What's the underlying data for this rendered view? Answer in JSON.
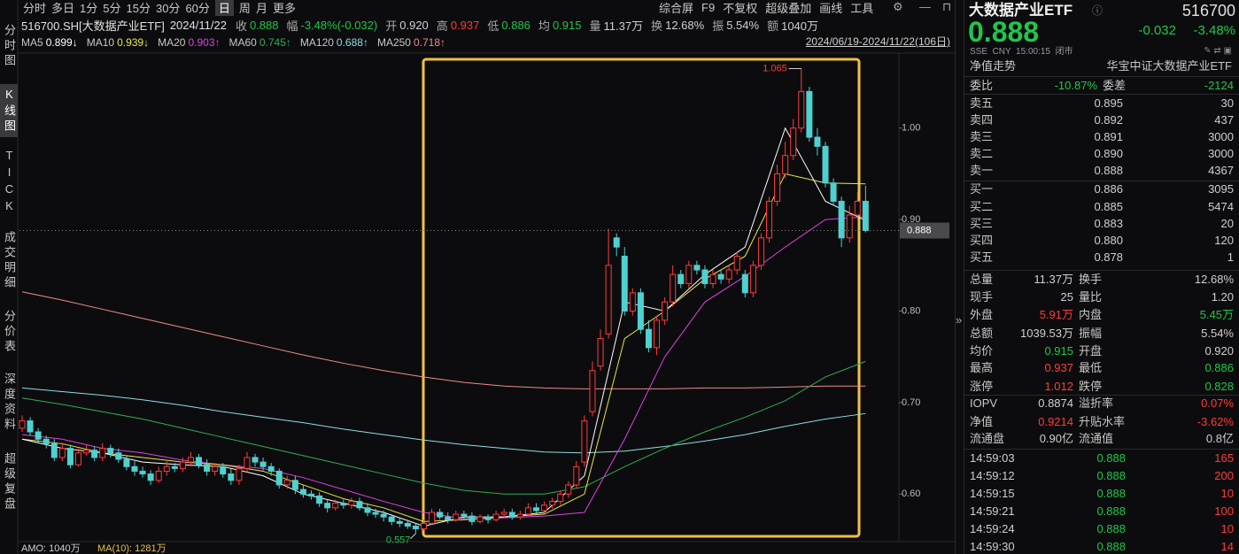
{
  "toolbar": {
    "periods": [
      "分时",
      "多日",
      "1分",
      "5分",
      "15分",
      "30分",
      "60分",
      "日",
      "周",
      "月",
      "更多"
    ],
    "selected": 7,
    "tools": [
      "综合屏",
      "F9",
      "不复权",
      "超级叠加",
      "画线",
      "工具"
    ]
  },
  "sidebar": [
    "分时图",
    "K线图",
    "TICK",
    "成交明细",
    "分价表",
    "深度资料",
    "超级复盘"
  ],
  "sidebar_selected": 1,
  "quote": {
    "symbol": "516700.SH[大数据产业ETF]",
    "date": "2024/11/22",
    "items": [
      {
        "label": "收",
        "value": "0.888",
        "color": "#20c64a"
      },
      {
        "label": "幅",
        "value": "-3.48%(-0.032)",
        "color": "#20c64a"
      },
      {
        "label": "开",
        "value": "0.920",
        "color": "#d0d0d0"
      },
      {
        "label": "高",
        "value": "0.937",
        "color": "#ff3b3b"
      },
      {
        "label": "低",
        "value": "0.886",
        "color": "#20c64a"
      },
      {
        "label": "均",
        "value": "0.915",
        "color": "#20c64a"
      },
      {
        "label": "量",
        "value": "11.37万",
        "color": "#d0d0d0"
      },
      {
        "label": "换",
        "value": "12.68%",
        "color": "#d0d0d0"
      },
      {
        "label": "振",
        "value": "5.54%",
        "color": "#d0d0d0"
      },
      {
        "label": "额",
        "value": "1040万",
        "color": "#d0d0d0"
      }
    ]
  },
  "ma_legend": [
    {
      "name": "MA5",
      "value": "0.899↓",
      "color": "#ffffff"
    },
    {
      "name": "MA10",
      "value": "0.939↓",
      "color": "#e8e84a"
    },
    {
      "name": "MA20",
      "value": "0.903↑",
      "color": "#e040e0"
    },
    {
      "name": "MA60",
      "value": "0.745↑",
      "color": "#2fae4f"
    },
    {
      "name": "MA120",
      "value": "0.688↑",
      "color": "#8fdde6"
    },
    {
      "name": "MA250",
      "value": "0.718↑",
      "color": "#f08a8a"
    }
  ],
  "range": "2024/06/19-2024/11/22(106日)",
  "chart": {
    "type": "candlestick",
    "open": [
      0.672,
      0.68,
      0.668,
      0.66,
      0.655,
      0.64,
      0.65,
      0.632,
      0.645,
      0.648,
      0.64,
      0.65,
      0.645,
      0.638,
      0.63,
      0.625,
      0.622,
      0.615,
      0.625,
      0.63,
      0.628,
      0.635,
      0.64,
      0.632,
      0.625,
      0.63,
      0.622,
      0.615,
      0.628,
      0.64,
      0.635,
      0.63,
      0.625,
      0.61,
      0.615,
      0.605,
      0.6,
      0.598,
      0.59,
      0.585,
      0.59,
      0.588,
      0.592,
      0.585,
      0.58,
      0.578,
      0.575,
      0.57,
      0.568,
      0.565,
      0.562,
      0.568,
      0.58,
      0.575,
      0.572,
      0.578,
      0.576,
      0.57,
      0.575,
      0.572,
      0.578,
      0.58,
      0.575,
      0.578,
      0.585,
      0.582,
      0.588,
      0.592,
      0.6,
      0.61,
      0.635,
      0.69,
      0.74,
      0.775,
      0.88,
      0.86,
      0.8,
      0.82,
      0.78,
      0.76,
      0.79,
      0.81,
      0.84,
      0.83,
      0.85,
      0.845,
      0.83,
      0.84,
      0.835,
      0.845,
      0.84,
      0.82,
      0.85,
      0.88,
      0.92,
      0.95,
      0.97,
      1.0,
      1.04,
      0.99,
      0.98,
      0.94,
      0.92,
      0.88,
      0.905,
      0.92
    ],
    "high": [
      0.686,
      0.684,
      0.672,
      0.664,
      0.66,
      0.656,
      0.654,
      0.65,
      0.654,
      0.652,
      0.656,
      0.654,
      0.65,
      0.642,
      0.636,
      0.63,
      0.626,
      0.63,
      0.636,
      0.634,
      0.64,
      0.646,
      0.644,
      0.638,
      0.634,
      0.634,
      0.628,
      0.632,
      0.646,
      0.644,
      0.64,
      0.634,
      0.628,
      0.62,
      0.62,
      0.61,
      0.604,
      0.602,
      0.594,
      0.594,
      0.594,
      0.596,
      0.596,
      0.59,
      0.584,
      0.582,
      0.578,
      0.574,
      0.572,
      0.568,
      0.572,
      0.584,
      0.584,
      0.58,
      0.582,
      0.582,
      0.58,
      0.578,
      0.578,
      0.582,
      0.584,
      0.584,
      0.582,
      0.59,
      0.59,
      0.592,
      0.596,
      0.604,
      0.614,
      0.636,
      0.686,
      0.745,
      0.78,
      0.89,
      0.885,
      0.87,
      0.825,
      0.825,
      0.79,
      0.795,
      0.815,
      0.85,
      0.845,
      0.855,
      0.855,
      0.85,
      0.845,
      0.845,
      0.85,
      0.865,
      0.845,
      0.855,
      0.885,
      0.925,
      0.96,
      0.985,
      1.01,
      1.065,
      1.045,
      1.0,
      0.985,
      0.945,
      0.925,
      0.915,
      0.93,
      0.937
    ],
    "low": [
      0.668,
      0.664,
      0.656,
      0.65,
      0.636,
      0.636,
      0.628,
      0.63,
      0.642,
      0.636,
      0.636,
      0.64,
      0.634,
      0.626,
      0.62,
      0.618,
      0.61,
      0.612,
      0.62,
      0.624,
      0.624,
      0.63,
      0.628,
      0.62,
      0.62,
      0.618,
      0.61,
      0.61,
      0.624,
      0.63,
      0.626,
      0.62,
      0.606,
      0.606,
      0.6,
      0.596,
      0.594,
      0.586,
      0.58,
      0.582,
      0.584,
      0.584,
      0.582,
      0.576,
      0.574,
      0.57,
      0.566,
      0.564,
      0.562,
      0.557,
      0.56,
      0.566,
      0.572,
      0.568,
      0.57,
      0.572,
      0.566,
      0.568,
      0.568,
      0.57,
      0.574,
      0.572,
      0.572,
      0.576,
      0.578,
      0.58,
      0.584,
      0.588,
      0.596,
      0.606,
      0.63,
      0.685,
      0.735,
      0.77,
      0.86,
      0.795,
      0.795,
      0.775,
      0.755,
      0.752,
      0.785,
      0.805,
      0.825,
      0.825,
      0.84,
      0.825,
      0.825,
      0.83,
      0.83,
      0.84,
      0.815,
      0.815,
      0.845,
      0.875,
      0.915,
      0.945,
      0.965,
      0.995,
      0.985,
      0.97,
      0.935,
      0.915,
      0.87,
      0.875,
      0.9,
      0.886
    ],
    "close": [
      0.68,
      0.668,
      0.66,
      0.655,
      0.64,
      0.65,
      0.632,
      0.645,
      0.648,
      0.64,
      0.65,
      0.645,
      0.638,
      0.63,
      0.625,
      0.622,
      0.615,
      0.625,
      0.63,
      0.628,
      0.635,
      0.64,
      0.632,
      0.625,
      0.63,
      0.622,
      0.615,
      0.628,
      0.64,
      0.635,
      0.63,
      0.625,
      0.61,
      0.615,
      0.605,
      0.6,
      0.598,
      0.59,
      0.585,
      0.59,
      0.588,
      0.592,
      0.585,
      0.58,
      0.578,
      0.575,
      0.57,
      0.568,
      0.565,
      0.562,
      0.568,
      0.58,
      0.575,
      0.572,
      0.578,
      0.576,
      0.57,
      0.575,
      0.572,
      0.578,
      0.58,
      0.575,
      0.578,
      0.585,
      0.582,
      0.588,
      0.592,
      0.6,
      0.61,
      0.63,
      0.68,
      0.735,
      0.77,
      0.85,
      0.87,
      0.8,
      0.82,
      0.78,
      0.76,
      0.79,
      0.81,
      0.84,
      0.83,
      0.85,
      0.845,
      0.83,
      0.84,
      0.835,
      0.845,
      0.86,
      0.82,
      0.85,
      0.88,
      0.92,
      0.95,
      0.97,
      1.0,
      1.04,
      0.99,
      0.98,
      0.94,
      0.92,
      0.88,
      0.905,
      0.92,
      0.888
    ],
    "ylim": [
      0.55,
      1.08
    ],
    "yticks": [
      {
        "value": 1.0,
        "label": "1.00"
      },
      {
        "value": 0.9,
        "label": "0.90"
      },
      {
        "value": 0.8,
        "label": "0.80"
      },
      {
        "value": 0.7,
        "label": "0.70"
      },
      {
        "value": 0.6,
        "label": "0.60"
      }
    ],
    "up_color": "#ff3b3b",
    "down_color": "#4fd1d1",
    "last_price": 0.888,
    "max_label": 1.065,
    "min_label": 0.557,
    "ma_lines": [
      {
        "color": "#f08a8a",
        "x": [
          0,
          5,
          10,
          15,
          20,
          25,
          30,
          35,
          40,
          45,
          50,
          55,
          60,
          65,
          70,
          75,
          80,
          85,
          90,
          95,
          100,
          105
        ],
        "values": [
          0.821,
          0.812,
          0.802,
          0.792,
          0.782,
          0.772,
          0.762,
          0.752,
          0.743,
          0.735,
          0.728,
          0.722,
          0.718,
          0.716,
          0.715,
          0.715,
          0.715,
          0.716,
          0.716,
          0.717,
          0.718,
          0.718
        ]
      },
      {
        "color": "#8fdde6",
        "x": [
          0,
          5,
          10,
          15,
          20,
          25,
          30,
          35,
          40,
          45,
          50,
          55,
          60,
          65,
          70,
          75,
          80,
          85,
          90,
          95,
          100,
          105
        ],
        "values": [
          0.716,
          0.712,
          0.708,
          0.703,
          0.697,
          0.69,
          0.684,
          0.678,
          0.671,
          0.665,
          0.659,
          0.654,
          0.65,
          0.646,
          0.645,
          0.647,
          0.652,
          0.658,
          0.665,
          0.674,
          0.682,
          0.688
        ]
      },
      {
        "color": "#2fae4f",
        "x": [
          0,
          5,
          10,
          15,
          20,
          25,
          30,
          35,
          40,
          45,
          50,
          55,
          60,
          65,
          70,
          75,
          80,
          85,
          90,
          95,
          100,
          105
        ],
        "values": [
          0.705,
          0.698,
          0.69,
          0.682,
          0.672,
          0.662,
          0.652,
          0.642,
          0.632,
          0.622,
          0.612,
          0.604,
          0.6,
          0.6,
          0.608,
          0.63,
          0.65,
          0.668,
          0.684,
          0.702,
          0.728,
          0.745
        ]
      },
      {
        "color": "#e040e0",
        "x": [
          0,
          5,
          10,
          15,
          20,
          25,
          30,
          35,
          40,
          45,
          50,
          55,
          60,
          65,
          70,
          75,
          80,
          85,
          90,
          95,
          100,
          105
        ],
        "values": [
          0.665,
          0.66,
          0.65,
          0.645,
          0.637,
          0.632,
          0.628,
          0.618,
          0.605,
          0.592,
          0.58,
          0.573,
          0.574,
          0.576,
          0.58,
          0.66,
          0.75,
          0.81,
          0.838,
          0.87,
          0.9,
          0.903
        ]
      },
      {
        "color": "#e8e84a",
        "x": [
          0,
          5,
          10,
          15,
          20,
          25,
          30,
          35,
          40,
          45,
          50,
          55,
          60,
          65,
          70,
          75,
          80,
          85,
          90,
          95,
          100,
          105
        ],
        "values": [
          0.66,
          0.655,
          0.645,
          0.64,
          0.635,
          0.632,
          0.625,
          0.61,
          0.595,
          0.585,
          0.57,
          0.572,
          0.575,
          0.578,
          0.6,
          0.77,
          0.8,
          0.835,
          0.86,
          0.95,
          0.94,
          0.939
        ]
      },
      {
        "color": "#ffffff",
        "x": [
          0,
          5,
          10,
          15,
          20,
          25,
          30,
          35,
          40,
          45,
          50,
          55,
          60,
          65,
          70,
          75,
          80,
          85,
          90,
          95,
          100,
          105
        ],
        "values": [
          0.66,
          0.65,
          0.645,
          0.635,
          0.632,
          0.63,
          0.62,
          0.6,
          0.59,
          0.58,
          0.565,
          0.575,
          0.575,
          0.58,
          0.62,
          0.81,
          0.8,
          0.84,
          0.87,
          1.0,
          0.92,
          0.899
        ]
      }
    ]
  },
  "volume": {
    "amo": "AMO: 1040万",
    "ma10": "MA(10): 1281万"
  },
  "panel": {
    "name": "大数据产业ETF",
    "code": "516700",
    "price": "0.888",
    "change": "-0.032",
    "change_pct": "-3.48%",
    "market": "SSE  CNY  15:00:15  闭市",
    "nav_tab": "净值走势",
    "full_name": "华宝中证大数据产业ETF",
    "ratio": [
      "委比",
      "-10.87%",
      "委差",
      "-2124"
    ],
    "asks": [
      [
        "卖五",
        "0.895",
        "30"
      ],
      [
        "卖四",
        "0.892",
        "437"
      ],
      [
        "卖三",
        "0.891",
        "3000"
      ],
      [
        "卖二",
        "0.890",
        "3000"
      ],
      [
        "卖一",
        "0.888",
        "4367"
      ]
    ],
    "bids": [
      [
        "买一",
        "0.886",
        "3095"
      ],
      [
        "买二",
        "0.885",
        "5474"
      ],
      [
        "买三",
        "0.883",
        "20"
      ],
      [
        "买四",
        "0.880",
        "120"
      ],
      [
        "买五",
        "0.878",
        "1"
      ]
    ],
    "stats": [
      {
        "cells": [
          "总量",
          "11.37万",
          "换手",
          "12.68%"
        ],
        "colors": [
          "#d0d0d0",
          "#d0d0d0"
        ]
      },
      {
        "cells": [
          "现手",
          "25",
          "量比",
          "1.20"
        ],
        "colors": [
          "#d0d0d0",
          "#d0d0d0"
        ]
      },
      {
        "cells": [
          "外盘",
          "5.91万",
          "内盘",
          "5.45万"
        ],
        "colors": [
          "#ff3b3b",
          "#20c64a"
        ]
      },
      {
        "cells": [
          "总额",
          "1039.53万",
          "振幅",
          "5.54%"
        ],
        "colors": [
          "#d0d0d0",
          "#d0d0d0"
        ]
      },
      {
        "cells": [
          "均价",
          "0.915",
          "开盘",
          "0.920"
        ],
        "colors": [
          "#20c64a",
          "#d0d0d0"
        ]
      },
      {
        "cells": [
          "最高",
          "0.937",
          "最低",
          "0.886"
        ],
        "colors": [
          "#ff3b3b",
          "#20c64a"
        ]
      },
      {
        "cells": [
          "涨停",
          "1.012",
          "跌停",
          "0.828"
        ],
        "colors": [
          "#ff3b3b",
          "#20c64a"
        ]
      },
      {
        "cells": [
          "IOPV",
          "0.8874",
          "溢折率",
          "0.07%"
        ],
        "colors": [
          "#d0d0d0",
          "#ff3b3b"
        ]
      },
      {
        "cells": [
          "净值",
          "0.9214",
          "升贴水率",
          "-3.62%"
        ],
        "colors": [
          "#ff3b3b",
          "#ff3b3b"
        ]
      },
      {
        "cells": [
          "流通盘",
          "0.90亿",
          "流通值",
          "0.8亿"
        ],
        "colors": [
          "#d0d0d0",
          "#d0d0d0"
        ]
      }
    ],
    "ticks": [
      [
        "14:59:03",
        "0.888",
        "165"
      ],
      [
        "14:59:12",
        "0.888",
        "200"
      ],
      [
        "14:59:15",
        "0.888",
        "10"
      ],
      [
        "14:59:21",
        "0.888",
        "100"
      ],
      [
        "14:59:24",
        "0.888",
        "10"
      ],
      [
        "14:59:30",
        "0.888",
        "14"
      ]
    ]
  }
}
